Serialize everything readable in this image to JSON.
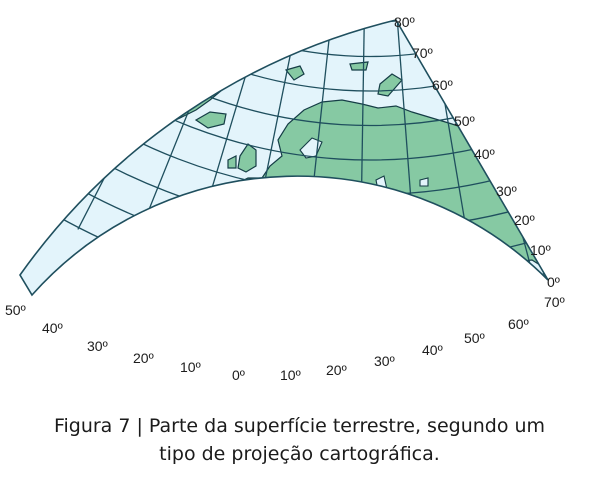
{
  "map": {
    "latitude_labels": [
      "80º",
      "70º",
      "60º",
      "50º",
      "40º",
      "30º",
      "20º",
      "10º",
      "0º"
    ],
    "longitude_labels": [
      "50º",
      "40º",
      "30º",
      "20º",
      "10º",
      "0º",
      "10º",
      "20º",
      "30º",
      "40º",
      "50º",
      "60º",
      "70º"
    ],
    "colors": {
      "ocean": "#e3f4fb",
      "land": "#86c9a3",
      "coast": "#153d46",
      "grid": "#1f4f5e"
    }
  },
  "caption": {
    "line1": "Figura 7 | Parte da superfície terrestre, segundo um",
    "line2": "tipo de projeção cartográfica."
  }
}
